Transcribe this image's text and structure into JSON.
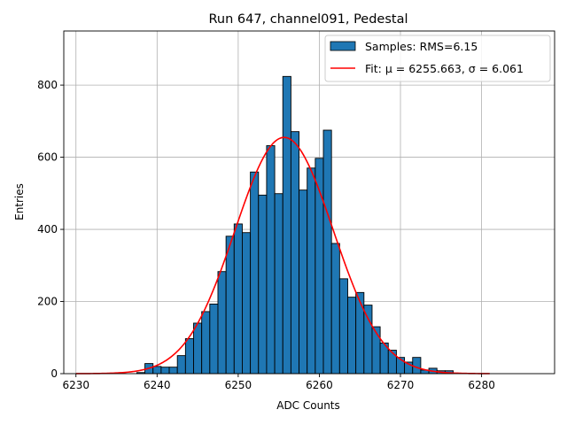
{
  "chart_data": {
    "type": "bar",
    "title": "Run 647, channel091, Pedestal",
    "xlabel": "ADC Counts",
    "ylabel": "Entries",
    "xlim": [
      6228.5,
      6289
    ],
    "ylim": [
      0,
      950
    ],
    "grid": true,
    "legend_position": "top-right",
    "x_ticks": [
      6230,
      6240,
      6250,
      6260,
      6270,
      6280
    ],
    "y_ticks": [
      0,
      200,
      400,
      600,
      800
    ],
    "bin_width": 1,
    "bins": [
      {
        "x": 6238,
        "count": 3
      },
      {
        "x": 6239,
        "count": 28
      },
      {
        "x": 6240,
        "count": 20
      },
      {
        "x": 6241,
        "count": 18
      },
      {
        "x": 6242,
        "count": 18
      },
      {
        "x": 6243,
        "count": 50
      },
      {
        "x": 6244,
        "count": 97
      },
      {
        "x": 6245,
        "count": 140
      },
      {
        "x": 6246,
        "count": 172
      },
      {
        "x": 6247,
        "count": 193
      },
      {
        "x": 6248,
        "count": 283
      },
      {
        "x": 6249,
        "count": 381
      },
      {
        "x": 6250,
        "count": 415
      },
      {
        "x": 6251,
        "count": 391
      },
      {
        "x": 6252,
        "count": 559
      },
      {
        "x": 6253,
        "count": 495
      },
      {
        "x": 6254,
        "count": 632
      },
      {
        "x": 6255,
        "count": 499
      },
      {
        "x": 6256,
        "count": 824
      },
      {
        "x": 6257,
        "count": 671
      },
      {
        "x": 6258,
        "count": 509
      },
      {
        "x": 6259,
        "count": 570
      },
      {
        "x": 6260,
        "count": 597
      },
      {
        "x": 6261,
        "count": 675
      },
      {
        "x": 6262,
        "count": 361
      },
      {
        "x": 6263,
        "count": 263
      },
      {
        "x": 6264,
        "count": 212
      },
      {
        "x": 6265,
        "count": 225
      },
      {
        "x": 6266,
        "count": 190
      },
      {
        "x": 6267,
        "count": 130
      },
      {
        "x": 6268,
        "count": 85
      },
      {
        "x": 6269,
        "count": 65
      },
      {
        "x": 6270,
        "count": 45
      },
      {
        "x": 6271,
        "count": 32
      },
      {
        "x": 6272,
        "count": 45
      },
      {
        "x": 6273,
        "count": 10
      },
      {
        "x": 6274,
        "count": 15
      },
      {
        "x": 6275,
        "count": 8
      },
      {
        "x": 6276,
        "count": 8
      }
    ],
    "fit": {
      "mu": 6255.663,
      "sigma": 6.061,
      "amplitude": 655,
      "x_range": [
        6230,
        6281
      ],
      "color": "#ff0000"
    },
    "bar_color": "#1f77b4",
    "bar_edge_color": "#000000",
    "legend": [
      {
        "label": "Samples: RMS=6.15",
        "kind": "patch",
        "color": "#1f77b4"
      },
      {
        "label": "Fit: μ = 6255.663, σ = 6.061",
        "kind": "line",
        "color": "#ff0000"
      }
    ]
  }
}
